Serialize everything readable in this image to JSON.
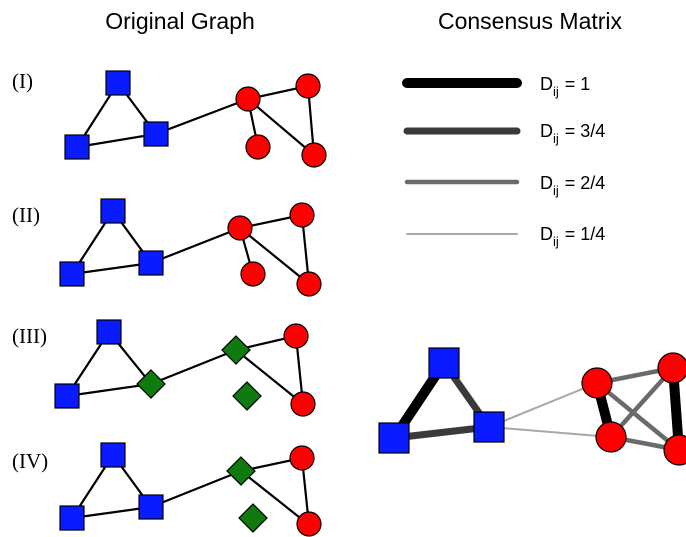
{
  "titles": {
    "left": "Original Graph",
    "right": "Consensus Matrix"
  },
  "panels": [
    {
      "label": "(I)"
    },
    {
      "label": "(II)"
    },
    {
      "label": "(III)"
    },
    {
      "label": "(IV)"
    }
  ],
  "legend": [
    {
      "base": "D",
      "sub": "ij",
      "value": "= 1"
    },
    {
      "base": "D",
      "sub": "ij",
      "value": "= 3/4"
    },
    {
      "base": "D",
      "sub": "ij",
      "value": "= 2/4"
    },
    {
      "base": "D",
      "sub": "ij",
      "value": "= 1/4"
    }
  ],
  "colors": {
    "square": "#0a1cff",
    "circle": "#ff0000",
    "diamond": "#0f7a0f",
    "edge_1": "#000000",
    "edge_3_4": "#3a3a3a",
    "edge_2_4": "#6a6a6a",
    "edge_1_4": "#a8a8a8"
  }
}
